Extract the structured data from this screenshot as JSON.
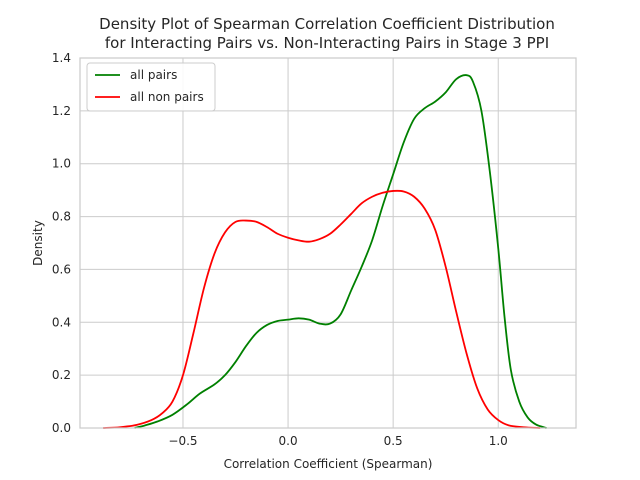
{
  "chart_data": {
    "type": "line",
    "title": "Density Plot of Spearman Correlation Coefficient Distribution",
    "subtitle": "for Interacting Pairs vs. Non-Interacting Pairs in Stage 3 PPI",
    "xlabel": "Correlation Coefficient (Spearman)",
    "ylabel": "Density",
    "xlim": [
      -0.99,
      1.37
    ],
    "ylim": [
      0,
      1.4
    ],
    "xticks": [
      "−0.5",
      "0.0",
      "0.5",
      "1.0"
    ],
    "xtick_values": [
      -0.5,
      0.0,
      0.5,
      1.0
    ],
    "yticks": [
      "0.0",
      "0.2",
      "0.4",
      "0.6",
      "0.8",
      "1.0",
      "1.2",
      "1.4"
    ],
    "ytick_values": [
      0,
      0.2,
      0.4,
      0.6,
      0.8,
      1.0,
      1.2,
      1.4
    ],
    "grid": true,
    "legend_position": "top-left",
    "series": [
      {
        "name": "all pairs",
        "color": "#008000",
        "points": [
          [
            -0.73,
            0.0
          ],
          [
            -0.68,
            0.01
          ],
          [
            -0.62,
            0.025
          ],
          [
            -0.55,
            0.05
          ],
          [
            -0.48,
            0.09
          ],
          [
            -0.42,
            0.13
          ],
          [
            -0.35,
            0.165
          ],
          [
            -0.3,
            0.2
          ],
          [
            -0.25,
            0.25
          ],
          [
            -0.2,
            0.31
          ],
          [
            -0.15,
            0.36
          ],
          [
            -0.1,
            0.39
          ],
          [
            -0.05,
            0.405
          ],
          [
            0.0,
            0.41
          ],
          [
            0.05,
            0.415
          ],
          [
            0.1,
            0.41
          ],
          [
            0.15,
            0.395
          ],
          [
            0.2,
            0.395
          ],
          [
            0.25,
            0.43
          ],
          [
            0.3,
            0.52
          ],
          [
            0.35,
            0.61
          ],
          [
            0.4,
            0.71
          ],
          [
            0.45,
            0.84
          ],
          [
            0.5,
            0.96
          ],
          [
            0.55,
            1.08
          ],
          [
            0.6,
            1.17
          ],
          [
            0.65,
            1.21
          ],
          [
            0.7,
            1.235
          ],
          [
            0.75,
            1.27
          ],
          [
            0.8,
            1.32
          ],
          [
            0.85,
            1.335
          ],
          [
            0.88,
            1.31
          ],
          [
            0.92,
            1.2
          ],
          [
            0.96,
            0.97
          ],
          [
            1.0,
            0.68
          ],
          [
            1.03,
            0.42
          ],
          [
            1.06,
            0.22
          ],
          [
            1.1,
            0.1
          ],
          [
            1.14,
            0.04
          ],
          [
            1.18,
            0.013
          ],
          [
            1.23,
            0.0
          ]
        ]
      },
      {
        "name": "all non pairs",
        "color": "#ff0000",
        "points": [
          [
            -0.88,
            0.0
          ],
          [
            -0.8,
            0.003
          ],
          [
            -0.72,
            0.012
          ],
          [
            -0.65,
            0.03
          ],
          [
            -0.6,
            0.055
          ],
          [
            -0.55,
            0.1
          ],
          [
            -0.5,
            0.2
          ],
          [
            -0.45,
            0.36
          ],
          [
            -0.4,
            0.53
          ],
          [
            -0.35,
            0.66
          ],
          [
            -0.3,
            0.74
          ],
          [
            -0.25,
            0.78
          ],
          [
            -0.2,
            0.785
          ],
          [
            -0.15,
            0.78
          ],
          [
            -0.1,
            0.76
          ],
          [
            -0.05,
            0.735
          ],
          [
            0.0,
            0.72
          ],
          [
            0.05,
            0.71
          ],
          [
            0.1,
            0.705
          ],
          [
            0.15,
            0.715
          ],
          [
            0.2,
            0.735
          ],
          [
            0.25,
            0.77
          ],
          [
            0.3,
            0.81
          ],
          [
            0.35,
            0.85
          ],
          [
            0.4,
            0.875
          ],
          [
            0.45,
            0.89
          ],
          [
            0.5,
            0.897
          ],
          [
            0.55,
            0.895
          ],
          [
            0.6,
            0.875
          ],
          [
            0.65,
            0.83
          ],
          [
            0.7,
            0.75
          ],
          [
            0.75,
            0.61
          ],
          [
            0.8,
            0.44
          ],
          [
            0.85,
            0.28
          ],
          [
            0.9,
            0.15
          ],
          [
            0.95,
            0.07
          ],
          [
            1.0,
            0.03
          ],
          [
            1.05,
            0.01
          ],
          [
            1.12,
            0.003
          ],
          [
            1.2,
            0.0
          ]
        ]
      }
    ]
  }
}
